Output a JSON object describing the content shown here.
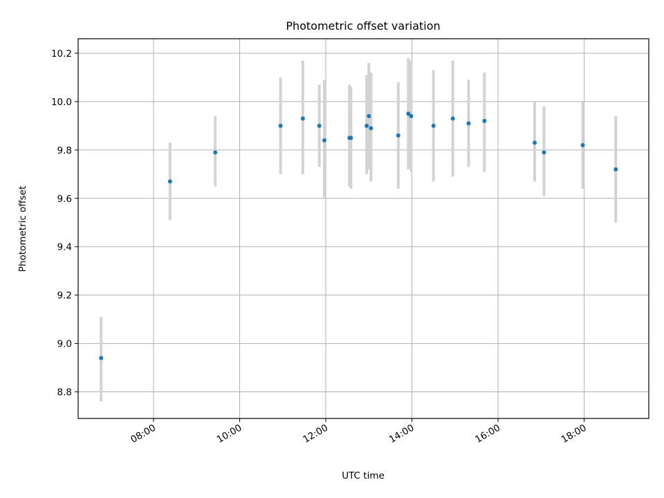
{
  "chart_data": {
    "type": "scatter",
    "title": "Photometric offset variation",
    "xlabel": "UTC time",
    "ylabel": "Photometric offset",
    "xlim": [
      "06:15",
      "19:30"
    ],
    "ylim": [
      8.69,
      10.26
    ],
    "x_ticks": [
      "08:00",
      "10:00",
      "12:00",
      "14:00",
      "16:00",
      "18:00"
    ],
    "y_ticks": [
      8.8,
      9.0,
      9.2,
      9.4,
      9.6,
      9.8,
      10.0,
      10.2
    ],
    "y_tick_labels": [
      "8.8",
      "9.0",
      "9.2",
      "9.4",
      "9.6",
      "9.8",
      "10.0",
      "10.2"
    ],
    "grid": true,
    "colors": {
      "point": "#1f77b4",
      "errorbar": "#d3d3d3",
      "grid": "#b0b0b0"
    },
    "series": [
      {
        "points": [
          {
            "x": "06:47",
            "y": 8.94,
            "lo": 8.76,
            "hi": 9.11
          },
          {
            "x": "08:23",
            "y": 9.67,
            "lo": 9.51,
            "hi": 9.83
          },
          {
            "x": "09:26",
            "y": 9.79,
            "lo": 9.65,
            "hi": 9.94
          },
          {
            "x": "10:57",
            "y": 9.9,
            "lo": 9.7,
            "hi": 10.1
          },
          {
            "x": "11:28",
            "y": 9.93,
            "lo": 9.7,
            "hi": 10.17
          },
          {
            "x": "11:51",
            "y": 9.9,
            "lo": 9.73,
            "hi": 10.07
          },
          {
            "x": "11:58",
            "y": 9.84,
            "lo": 9.6,
            "hi": 10.09
          },
          {
            "x": "12:33",
            "y": 9.85,
            "lo": 9.65,
            "hi": 10.07
          },
          {
            "x": "12:35",
            "y": 9.85,
            "lo": 9.64,
            "hi": 10.06
          },
          {
            "x": "12:57",
            "y": 9.9,
            "lo": 9.7,
            "hi": 10.11
          },
          {
            "x": "13:00",
            "y": 9.94,
            "lo": 9.72,
            "hi": 10.16
          },
          {
            "x": "13:03",
            "y": 9.89,
            "lo": 9.67,
            "hi": 10.12
          },
          {
            "x": "13:41",
            "y": 9.86,
            "lo": 9.64,
            "hi": 10.08
          },
          {
            "x": "13:55",
            "y": 9.95,
            "lo": 9.72,
            "hi": 10.18
          },
          {
            "x": "13:59",
            "y": 9.94,
            "lo": 9.71,
            "hi": 10.17
          },
          {
            "x": "14:30",
            "y": 9.9,
            "lo": 9.67,
            "hi": 10.13
          },
          {
            "x": "14:57",
            "y": 9.93,
            "lo": 9.69,
            "hi": 10.17
          },
          {
            "x": "15:19",
            "y": 9.91,
            "lo": 9.73,
            "hi": 10.09
          },
          {
            "x": "15:41",
            "y": 9.92,
            "lo": 9.71,
            "hi": 10.12
          },
          {
            "x": "16:51",
            "y": 9.83,
            "lo": 9.67,
            "hi": 10.0
          },
          {
            "x": "17:04",
            "y": 9.79,
            "lo": 9.61,
            "hi": 9.98
          },
          {
            "x": "17:58",
            "y": 9.82,
            "lo": 9.64,
            "hi": 10.0
          },
          {
            "x": "18:44",
            "y": 9.72,
            "lo": 9.5,
            "hi": 9.94
          }
        ]
      }
    ]
  }
}
